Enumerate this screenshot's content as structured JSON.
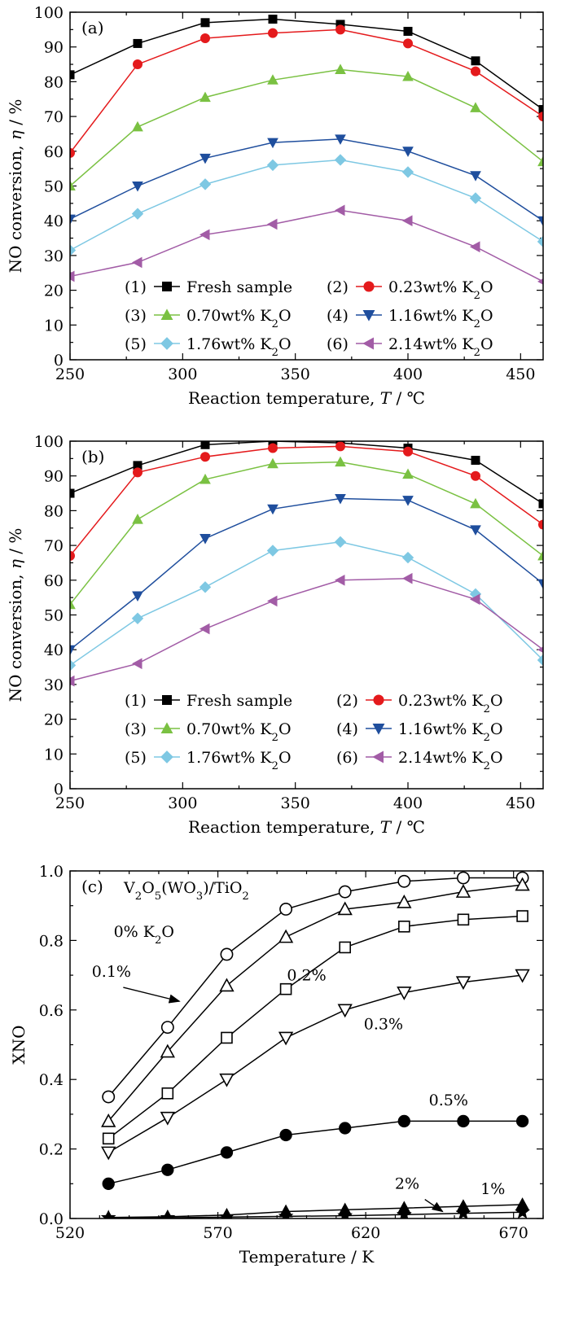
{
  "chart_data": [
    {
      "panel": "(a)",
      "type": "line",
      "xlabel": "Reaction temperature, T / ℃",
      "ylabel": "NO conversion, η / %",
      "xlim": [
        250,
        460
      ],
      "ylim": [
        0,
        100
      ],
      "xticks": [
        250,
        300,
        350,
        400,
        450
      ],
      "yticks": [
        0,
        10,
        20,
        30,
        40,
        50,
        60,
        70,
        80,
        90,
        100
      ],
      "x": [
        250,
        280,
        310,
        340,
        370,
        400,
        430,
        460
      ],
      "legend_position": "bottom-center",
      "series": [
        {
          "name": "(1) Fresh sample",
          "color": "#000000",
          "marker": "square",
          "values": [
            82,
            91,
            97,
            98,
            96.5,
            94.5,
            86,
            72
          ]
        },
        {
          "name": "(2) 0.23wt% K2O",
          "color": "#e41a1c",
          "marker": "circle",
          "values": [
            59.5,
            85,
            92.5,
            94,
            95,
            91,
            83,
            70
          ]
        },
        {
          "name": "(3) 0.70wt% K2O",
          "color": "#7ac142",
          "marker": "triangle-up",
          "values": [
            50,
            67,
            75.5,
            80.5,
            83.5,
            81.5,
            72.5,
            57
          ]
        },
        {
          "name": "(4) 1.16wt% K2O",
          "color": "#1f4e9d",
          "marker": "triangle-down",
          "values": [
            40.5,
            50,
            58,
            62.5,
            63.5,
            60,
            53,
            40
          ]
        },
        {
          "name": "(5) 1.76wt% K2O",
          "color": "#7ec8e3",
          "marker": "diamond",
          "values": [
            31.5,
            42,
            50.5,
            56,
            57.5,
            54,
            46.5,
            34
          ]
        },
        {
          "name": "(6) 2.14wt% K2O",
          "color": "#a25ca6",
          "marker": "triangle-left",
          "values": [
            24,
            28,
            36,
            39,
            43,
            40,
            32.5,
            22.5
          ]
        }
      ]
    },
    {
      "panel": "(b)",
      "type": "line",
      "xlabel": "Reaction temperature, T / ℃",
      "ylabel": "NO conversion, η / %",
      "xlim": [
        250,
        460
      ],
      "ylim": [
        0,
        100
      ],
      "xticks": [
        250,
        300,
        350,
        400,
        450
      ],
      "yticks": [
        0,
        10,
        20,
        30,
        40,
        50,
        60,
        70,
        80,
        90,
        100
      ],
      "x": [
        250,
        280,
        310,
        340,
        370,
        400,
        430,
        460
      ],
      "legend_position": "bottom-center",
      "series": [
        {
          "name": "(1) Fresh sample",
          "color": "#000000",
          "marker": "square",
          "values": [
            85,
            93,
            99,
            100,
            99.5,
            98,
            94.5,
            82
          ]
        },
        {
          "name": "(2) 0.23wt% K2O",
          "color": "#e41a1c",
          "marker": "circle",
          "values": [
            67,
            91,
            95.5,
            98,
            98.5,
            97,
            90,
            76
          ]
        },
        {
          "name": "(3) 0.70wt% K2O",
          "color": "#7ac142",
          "marker": "triangle-up",
          "values": [
            53,
            77.5,
            89,
            93.5,
            94,
            90.5,
            82,
            67
          ]
        },
        {
          "name": "(4) 1.16wt% K2O",
          "color": "#1f4e9d",
          "marker": "triangle-down",
          "values": [
            40,
            55.5,
            72,
            80.5,
            83.5,
            83,
            74.5,
            59
          ]
        },
        {
          "name": "(5) 1.76wt% K2O",
          "color": "#7ec8e3",
          "marker": "diamond",
          "values": [
            35.5,
            49,
            58,
            68.5,
            71,
            66.5,
            56,
            37
          ]
        },
        {
          "name": "(6) 2.14wt% K2O",
          "color": "#a25ca6",
          "marker": "triangle-left",
          "values": [
            31,
            36,
            46,
            54,
            60,
            60.5,
            54.5,
            40
          ]
        }
      ]
    },
    {
      "panel": "(c)",
      "type": "line",
      "subtitle": "V2O5(WO3)/TiO2",
      "xlabel": "Temperature / K",
      "ylabel": "XNO",
      "xlim": [
        520,
        680
      ],
      "ylim": [
        0,
        1.0
      ],
      "xticks": [
        520,
        570,
        620,
        670
      ],
      "yticks": [
        0.0,
        0.2,
        0.4,
        0.6,
        0.8,
        1.0
      ],
      "x": [
        533,
        553,
        573,
        593,
        613,
        633,
        653,
        673
      ],
      "series": [
        {
          "name": "0% K2O",
          "marker": "open-circle",
          "values": [
            0.35,
            0.55,
            0.76,
            0.89,
            0.94,
            0.97,
            0.98,
            0.98
          ]
        },
        {
          "name": "0.1%",
          "marker": "open-triangle-up",
          "values": [
            0.28,
            0.48,
            0.67,
            0.81,
            0.89,
            0.91,
            0.94,
            0.96
          ]
        },
        {
          "name": "0.2%",
          "marker": "open-square",
          "values": [
            0.23,
            0.36,
            0.52,
            0.66,
            0.78,
            0.84,
            0.86,
            0.87
          ]
        },
        {
          "name": "0.3%",
          "marker": "open-triangle-down",
          "values": [
            0.19,
            0.29,
            0.4,
            0.52,
            0.6,
            0.65,
            0.68,
            0.7
          ]
        },
        {
          "name": "0.5%",
          "marker": "filled-circle",
          "values": [
            0.1,
            0.14,
            0.19,
            0.24,
            0.26,
            0.28,
            0.28,
            0.28
          ]
        },
        {
          "name": "1%",
          "marker": "filled-triangle-up",
          "values": [
            0.003,
            0.005,
            0.01,
            0.02,
            0.025,
            0.03,
            0.035,
            0.04
          ]
        },
        {
          "name": "2%",
          "marker": "filled-star",
          "values": [
            0.002,
            0.002,
            0.004,
            0.006,
            0.008,
            0.011,
            0.015,
            0.018
          ]
        }
      ],
      "annotations": [
        "0% K2O",
        "0.1%",
        "0.2%",
        "0.3%",
        "0.5%",
        "2%",
        "1%"
      ]
    }
  ]
}
